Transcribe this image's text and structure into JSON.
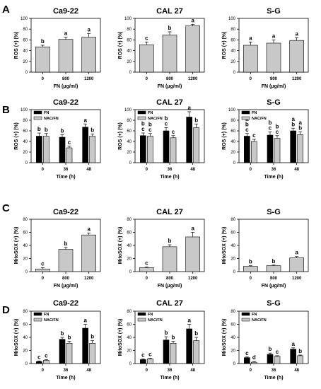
{
  "colors": {
    "fn_bar": "#000000",
    "nac_bar": "#c8c8c8",
    "single_bar": "#c8c8c8",
    "axis": "#000000"
  },
  "panel_letters": [
    "A",
    "B",
    "C",
    "D"
  ],
  "chart_data": [
    {
      "panel": "A",
      "type": "bar",
      "title": "Ca9-22",
      "ylabel": "ROS (+) (%)",
      "xlabel": "FN (μg/ml)",
      "ylim": [
        0,
        100
      ],
      "yticks": [
        "0",
        "20",
        "40",
        "60",
        "80",
        "100"
      ],
      "categories": [
        "0",
        "800",
        "1200"
      ],
      "series": [
        {
          "values": [
            47,
            61,
            65
          ],
          "errors": [
            3,
            4,
            7
          ],
          "labels": [
            "b",
            "a",
            "a"
          ]
        }
      ]
    },
    {
      "panel": "A",
      "type": "bar",
      "title": "CAL 27",
      "ylabel": "ROS (+) (%)",
      "xlabel": "FN (μg/ml)",
      "ylim": [
        0,
        100
      ],
      "yticks": [
        "0",
        "20",
        "40",
        "60",
        "80",
        "100"
      ],
      "categories": [
        "0",
        "800",
        "1200"
      ],
      "series": [
        {
          "values": [
            51,
            69,
            86
          ],
          "errors": [
            5,
            6,
            3
          ],
          "labels": [
            "c",
            "b",
            "a"
          ]
        }
      ]
    },
    {
      "panel": "A",
      "type": "bar",
      "title": "S-G",
      "ylabel": "ROS (+) (%)",
      "xlabel": "FN (μg/ml)",
      "ylim": [
        0,
        100
      ],
      "yticks": [
        "0",
        "20",
        "40",
        "60",
        "80",
        "100"
      ],
      "categories": [
        "0",
        "800",
        "1200"
      ],
      "series": [
        {
          "values": [
            50,
            54,
            59
          ],
          "errors": [
            6,
            6,
            5
          ],
          "labels": [
            "a",
            "a",
            "a"
          ]
        }
      ]
    },
    {
      "panel": "B",
      "type": "bar",
      "title": "Ca9-22",
      "ylabel": "ROS (+) (%)",
      "xlabel": "Time (h)",
      "ylim": [
        0,
        100
      ],
      "yticks": [
        "0",
        "20",
        "40",
        "60",
        "80",
        "100"
      ],
      "categories": [
        "0",
        "36",
        "48"
      ],
      "legend": [
        "FN",
        "NAC/FN"
      ],
      "series": [
        {
          "name": "FN",
          "values": [
            50,
            48,
            67
          ],
          "errors": [
            6,
            5,
            6
          ],
          "labels": [
            "b",
            "b",
            "a"
          ]
        },
        {
          "name": "NAC/FN",
          "values": [
            50,
            28,
            50
          ],
          "errors": [
            5,
            3,
            4
          ],
          "labels": [
            "b",
            "c",
            "b"
          ]
        }
      ]
    },
    {
      "panel": "B",
      "type": "bar",
      "title": "CAL 27",
      "ylabel": "ROS (+) (%)",
      "xlabel": "Time (h)",
      "ylim": [
        0,
        100
      ],
      "yticks": [
        "0",
        "20",
        "40",
        "60",
        "80",
        "100"
      ],
      "categories": [
        "0",
        "36",
        "48"
      ],
      "legend": [
        "FN",
        "NAC/FN"
      ],
      "series": [
        {
          "name": "FN",
          "values": [
            51,
            60,
            86
          ],
          "errors": [
            5,
            6,
            10
          ],
          "labels": [
            "b\nc",
            "b\nc",
            "a"
          ]
        },
        {
          "name": "NAC/FN",
          "values": [
            50,
            47,
            66
          ],
          "errors": [
            5,
            4,
            7
          ],
          "labels": [
            "b\nc",
            "c",
            "b"
          ]
        }
      ]
    },
    {
      "panel": "B",
      "type": "bar",
      "title": "S-G",
      "ylabel": "ROS (+) (%)",
      "xlabel": "Time (h)",
      "ylim": [
        0,
        100
      ],
      "yticks": [
        "0",
        "20",
        "40",
        "60",
        "80",
        "100"
      ],
      "categories": [
        "0",
        "36",
        "48"
      ],
      "legend": [
        "FN",
        "NAC/FN"
      ],
      "series": [
        {
          "name": "FN",
          "values": [
            50,
            52,
            60
          ],
          "errors": [
            5,
            6,
            5
          ],
          "labels": [
            "a\nb\nc",
            "b\nc",
            "a\nb"
          ]
        },
        {
          "name": "NAC/FN",
          "values": [
            40,
            46,
            53
          ],
          "errors": [
            4,
            5,
            5
          ],
          "labels": [
            "c",
            "b\nc",
            "a\nb"
          ]
        }
      ]
    },
    {
      "panel": "C",
      "type": "bar",
      "title": "Ca9-22",
      "ylabel": "MitoSOX (+) (%)",
      "xlabel": "FN (μg/ml)",
      "ylim": [
        0,
        80
      ],
      "yticks": [
        "0",
        "20",
        "40",
        "60",
        "80"
      ],
      "categories": [
        "0",
        "800",
        "1200"
      ],
      "series": [
        {
          "values": [
            4,
            34,
            56
          ],
          "errors": [
            2,
            3,
            3
          ],
          "labels": [
            "c",
            "b",
            "a"
          ]
        }
      ]
    },
    {
      "panel": "C",
      "type": "bar",
      "title": "CAL 27",
      "ylabel": "MitoSOX (+) (%)",
      "xlabel": "FN (μg/ml)",
      "ylim": [
        0,
        80
      ],
      "yticks": [
        "0",
        "20",
        "40",
        "60",
        "80"
      ],
      "categories": [
        "0",
        "800",
        "1200"
      ],
      "series": [
        {
          "values": [
            6,
            38,
            53
          ],
          "errors": [
            1,
            3,
            7
          ],
          "labels": [
            "c",
            "b",
            "a"
          ]
        }
      ]
    },
    {
      "panel": "C",
      "type": "bar",
      "title": "S-G",
      "ylabel": "MitoSOX (+) (%)",
      "xlabel": "FN (μg/ml)",
      "ylim": [
        0,
        80
      ],
      "yticks": [
        "0",
        "20",
        "40",
        "60",
        "80"
      ],
      "categories": [
        "0",
        "800",
        "1200"
      ],
      "series": [
        {
          "values": [
            8,
            9,
            21
          ],
          "errors": [
            1,
            1,
            2
          ],
          "labels": [
            "b",
            "b",
            "a"
          ]
        }
      ]
    },
    {
      "panel": "D",
      "type": "bar",
      "title": "Ca9-22",
      "ylabel": "MitoSOX (+) (%)",
      "xlabel": "Time (h)",
      "ylim": [
        0,
        80
      ],
      "yticks": [
        "0",
        "20",
        "40",
        "60",
        "80"
      ],
      "categories": [
        "0",
        "36",
        "48"
      ],
      "legend": [
        "FN",
        "NAC/FN"
      ],
      "series": [
        {
          "name": "FN",
          "values": [
            3,
            37,
            54
          ],
          "errors": [
            1,
            3,
            6
          ],
          "labels": [
            "c",
            "b",
            "a"
          ]
        },
        {
          "name": "NAC/FN",
          "values": [
            5,
            31,
            31
          ],
          "errors": [
            1,
            3,
            4
          ],
          "labels": [
            "c",
            "b",
            "b"
          ]
        }
      ]
    },
    {
      "panel": "D",
      "type": "bar",
      "title": "CAL 27",
      "ylabel": "MitoSOX (+) (%)",
      "xlabel": "Time (h)",
      "ylim": [
        0,
        80
      ],
      "yticks": [
        "0",
        "20",
        "40",
        "60",
        "80"
      ],
      "categories": [
        "0",
        "36",
        "48"
      ],
      "legend": [
        "FN",
        "NAC/FN"
      ],
      "series": [
        {
          "name": "FN",
          "values": [
            6,
            36,
            53
          ],
          "errors": [
            1,
            5,
            7
          ],
          "labels": [
            "c",
            "b",
            "a"
          ]
        },
        {
          "name": "NAC/FN",
          "values": [
            7,
            31,
            35
          ],
          "errors": [
            1,
            3,
            5
          ],
          "labels": [
            "c",
            "b",
            "b"
          ]
        }
      ]
    },
    {
      "panel": "D",
      "type": "bar",
      "title": "S-G",
      "ylabel": "MitoSOX (+) (%)",
      "xlabel": "Time (h)",
      "ylim": [
        0,
        80
      ],
      "yticks": [
        "0",
        "20",
        "40",
        "60",
        "80"
      ],
      "categories": [
        "0",
        "36",
        "48"
      ],
      "legend": [
        "FN",
        "NAC/FN"
      ],
      "series": [
        {
          "name": "FN",
          "values": [
            9,
            14,
            22
          ],
          "errors": [
            1,
            2,
            2
          ],
          "labels": [
            "c",
            "b",
            "a"
          ]
        },
        {
          "name": "NAC/FN",
          "values": [
            2,
            11,
            12
          ],
          "errors": [
            1,
            1,
            1
          ],
          "labels": [
            "d",
            "c",
            "b"
          ]
        }
      ]
    }
  ]
}
